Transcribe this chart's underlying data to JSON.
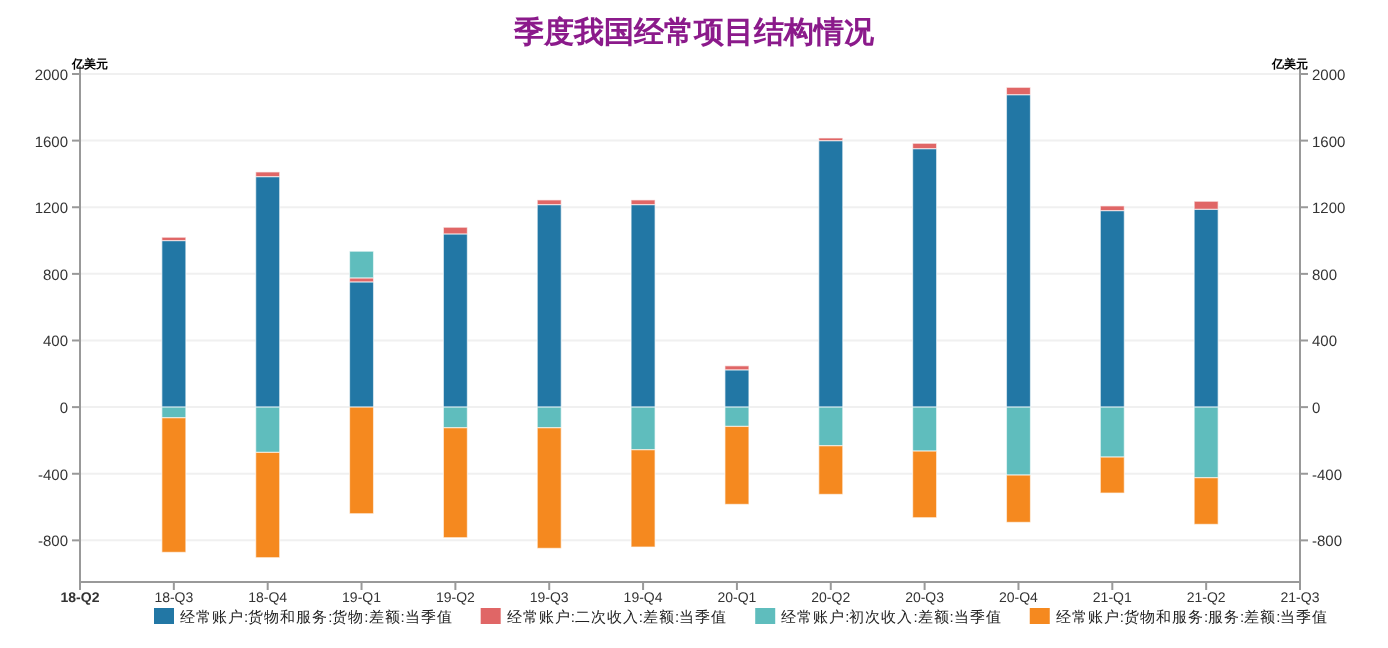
{
  "chart_data": {
    "type": "bar",
    "stacked": true,
    "title": "季度我国经常项目结构情况",
    "ylabel": "亿美元",
    "y2label": "亿美元",
    "categories": [
      "18-Q2",
      "18-Q3",
      "18-Q4",
      "19-Q1",
      "19-Q2",
      "19-Q3",
      "19-Q4",
      "20-Q1",
      "20-Q2",
      "20-Q3",
      "20-Q4",
      "21-Q1",
      "21-Q2",
      "21-Q3"
    ],
    "series": [
      {
        "name": "经常账户:货物和服务:货物:差额:当季值",
        "color": "#2277a5",
        "values": [
          null,
          1000,
          1384,
          752,
          1040,
          1216,
          1216,
          224,
          1600,
          1552,
          1876,
          1180,
          1188,
          null
        ]
      },
      {
        "name": "经常账户:二次收入:差额:当季值",
        "color": "#e06666",
        "values": [
          null,
          20,
          28,
          24,
          40,
          28,
          28,
          24,
          16,
          32,
          44,
          28,
          48,
          null
        ]
      },
      {
        "name": "经常账户:初次收入:差额:当季值",
        "color": "#5fbdbd",
        "values": [
          null,
          -64,
          -272,
          160,
          -124,
          -124,
          -256,
          -116,
          -232,
          -264,
          -408,
          -300,
          -424,
          null
        ]
      },
      {
        "name": "经常账户:货物和服务:服务:差额:当季值",
        "color": "#f5891f",
        "values": [
          null,
          -808,
          -632,
          -640,
          -660,
          -724,
          -584,
          -468,
          -292,
          -400,
          -284,
          -216,
          -280,
          null
        ]
      }
    ],
    "ylim": [
      -1050,
      2000
    ],
    "yticks": [
      -800,
      -400,
      0,
      400,
      800,
      1200,
      1600,
      2000
    ],
    "y2lim": [
      -1050,
      2000
    ],
    "y2ticks": [
      -800,
      -400,
      0,
      400,
      800,
      1200,
      1600,
      2000
    ],
    "grid": "y",
    "legend": "bottom"
  }
}
